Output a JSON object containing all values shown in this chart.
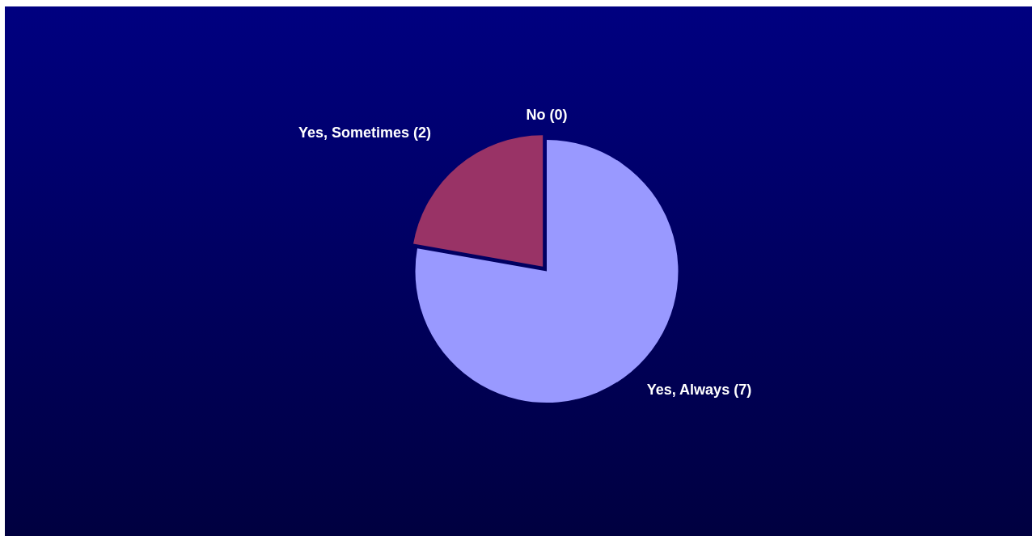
{
  "chart_data": {
    "type": "pie",
    "categories": [
      "Yes, Always (7)",
      "Yes, Sometimes (2)",
      "No (0)"
    ],
    "values": [
      7,
      2,
      0
    ],
    "colors": [
      "#9999ff",
      "#993366",
      "#ffffcc"
    ],
    "legend": false
  }
}
